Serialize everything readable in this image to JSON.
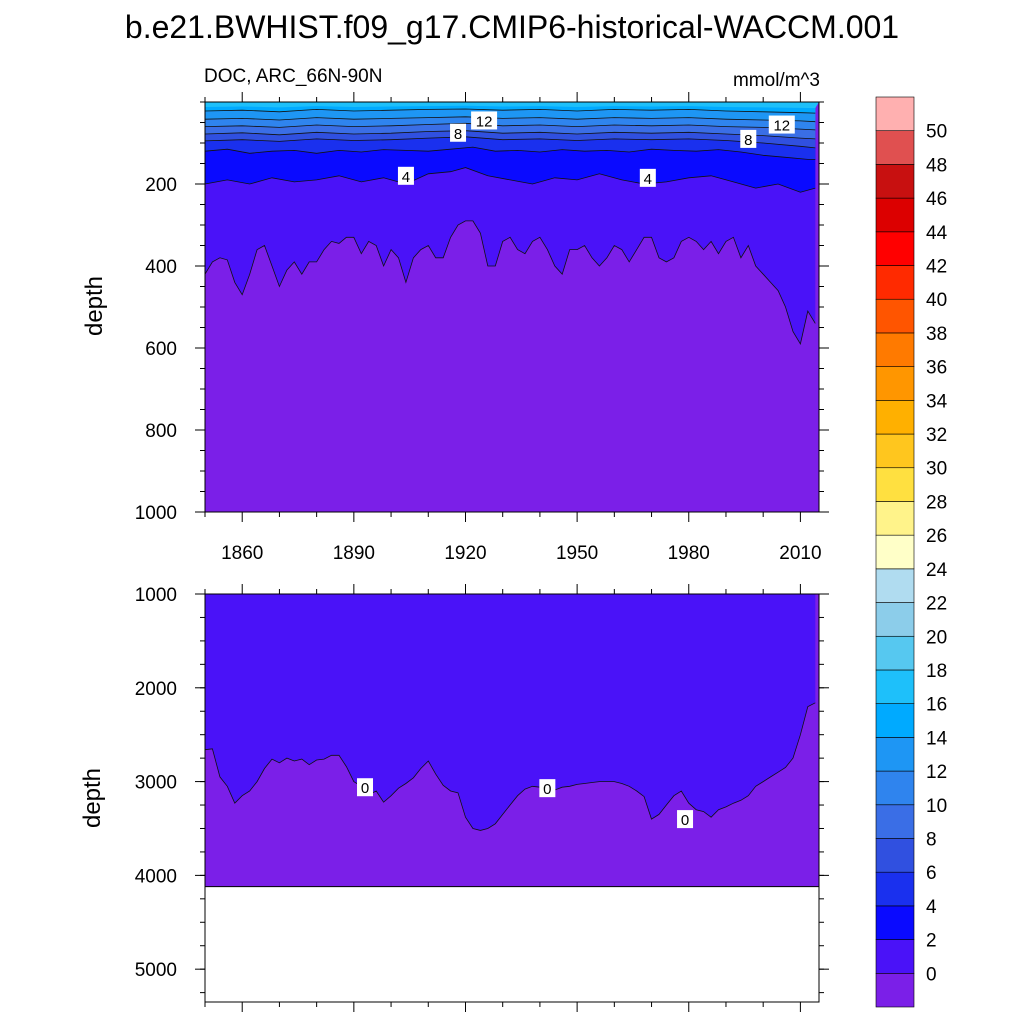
{
  "title": "b.e21.BWHIST.f09_g17.CMIP6-historical-WACCM.001",
  "chart_data": [
    {
      "type": "filled-contour",
      "panel": "upper",
      "subtitle_left": "DOC, ARC_66N-90N",
      "subtitle_right": "mmol/m^3",
      "xlabel": "",
      "ylabel": "depth",
      "xlim": [
        1850,
        2015
      ],
      "ylim": [
        1000,
        0
      ],
      "x_ticks": [
        "1860",
        "1890",
        "1920",
        "1950",
        "1980",
        "2010"
      ],
      "y_ticks": [
        "200",
        "400",
        "600",
        "800",
        "1000"
      ],
      "x_tick_values": [
        1860,
        1890,
        1920,
        1950,
        1980,
        2010
      ],
      "y_tick_values": [
        200,
        400,
        600,
        800,
        1000
      ],
      "contour_labels": [
        {
          "text": "12",
          "x": 1925,
          "y": 45
        },
        {
          "text": "12",
          "x": 2005,
          "y": 55
        },
        {
          "text": "8",
          "x": 1918,
          "y": 75
        },
        {
          "text": "8",
          "x": 1996,
          "y": 90
        },
        {
          "text": "4",
          "x": 1904,
          "y": 180
        },
        {
          "text": "4",
          "x": 1969,
          "y": 185
        }
      ],
      "contour_boundaries": [
        {
          "level": 0,
          "x": [
            1850,
            1852,
            1854,
            1856,
            1858,
            1860,
            1862,
            1864,
            1866,
            1868,
            1870,
            1872,
            1874,
            1876,
            1878,
            1880,
            1882,
            1884,
            1886,
            1888,
            1890,
            1892,
            1894,
            1896,
            1898,
            1900,
            1902,
            1904,
            1906,
            1908,
            1910,
            1912,
            1914,
            1916,
            1918,
            1920,
            1922,
            1924,
            1926,
            1928,
            1930,
            1932,
            1934,
            1936,
            1938,
            1940,
            1942,
            1944,
            1946,
            1948,
            1950,
            1952,
            1954,
            1956,
            1958,
            1960,
            1962,
            1964,
            1966,
            1968,
            1970,
            1972,
            1974,
            1976,
            1978,
            1980,
            1982,
            1984,
            1986,
            1988,
            1990,
            1992,
            1994,
            1996,
            1998,
            2000,
            2002,
            2004,
            2006,
            2008,
            2010,
            2012,
            2014
          ],
          "y": [
            420,
            390,
            380,
            385,
            440,
            470,
            420,
            360,
            350,
            400,
            450,
            410,
            390,
            420,
            390,
            390,
            360,
            340,
            345,
            330,
            330,
            370,
            340,
            350,
            400,
            360,
            380,
            440,
            380,
            360,
            350,
            380,
            380,
            330,
            300,
            290,
            290,
            320,
            400,
            400,
            340,
            330,
            360,
            370,
            340,
            330,
            360,
            400,
            420,
            360,
            360,
            350,
            380,
            400,
            380,
            350,
            360,
            390,
            360,
            330,
            330,
            380,
            390,
            380,
            340,
            330,
            340,
            360,
            340,
            370,
            340,
            330,
            380,
            350,
            400,
            420,
            440,
            460,
            500,
            560,
            590,
            510,
            540
          ]
        },
        {
          "level": 2,
          "x": [
            1850,
            1856,
            1862,
            1868,
            1874,
            1880,
            1886,
            1892,
            1898,
            1904,
            1910,
            1916,
            1920,
            1926,
            1932,
            1938,
            1944,
            1950,
            1956,
            1962,
            1968,
            1974,
            1980,
            1986,
            1992,
            1998,
            2004,
            2010,
            2014
          ],
          "y": [
            200,
            190,
            200,
            185,
            195,
            190,
            180,
            195,
            185,
            200,
            175,
            170,
            160,
            180,
            190,
            200,
            185,
            190,
            175,
            190,
            200,
            195,
            185,
            180,
            195,
            210,
            200,
            220,
            210
          ]
        },
        {
          "level": 4,
          "x": [
            1850,
            1856,
            1862,
            1868,
            1874,
            1880,
            1886,
            1892,
            1898,
            1904,
            1910,
            1916,
            1922,
            1928,
            1934,
            1940,
            1946,
            1952,
            1958,
            1964,
            1970,
            1976,
            1982,
            1988,
            1994,
            2000,
            2006,
            2012,
            2014
          ],
          "y": [
            120,
            115,
            125,
            120,
            118,
            125,
            118,
            122,
            116,
            118,
            120,
            115,
            110,
            120,
            118,
            122,
            116,
            120,
            118,
            122,
            115,
            118,
            120,
            116,
            122,
            130,
            135,
            140,
            140
          ]
        },
        {
          "level": 6,
          "x": [
            1850,
            1860,
            1870,
            1880,
            1890,
            1900,
            1910,
            1920,
            1930,
            1940,
            1950,
            1960,
            1970,
            1980,
            1990,
            2000,
            2010,
            2014
          ],
          "y": [
            95,
            92,
            96,
            90,
            94,
            92,
            88,
            85,
            92,
            90,
            94,
            90,
            92,
            90,
            94,
            100,
            108,
            112
          ]
        },
        {
          "level": 8,
          "x": [
            1850,
            1860,
            1870,
            1880,
            1890,
            1900,
            1910,
            1920,
            1930,
            1940,
            1950,
            1960,
            1970,
            1980,
            1990,
            2000,
            2010,
            2014
          ],
          "y": [
            78,
            75,
            80,
            74,
            78,
            76,
            72,
            70,
            76,
            74,
            78,
            74,
            76,
            74,
            78,
            82,
            88,
            90
          ]
        },
        {
          "level": 10,
          "x": [
            1850,
            1860,
            1870,
            1880,
            1890,
            1900,
            1910,
            1920,
            1930,
            1940,
            1950,
            1960,
            1970,
            1980,
            1990,
            2000,
            2010,
            2014
          ],
          "y": [
            60,
            58,
            62,
            56,
            60,
            58,
            55,
            52,
            58,
            56,
            60,
            56,
            58,
            56,
            60,
            62,
            66,
            68
          ]
        },
        {
          "level": 12,
          "x": [
            1850,
            1860,
            1870,
            1880,
            1890,
            1900,
            1910,
            1920,
            1930,
            1940,
            1950,
            1960,
            1970,
            1980,
            1990,
            2000,
            2010,
            2014
          ],
          "y": [
            42,
            40,
            44,
            38,
            42,
            40,
            38,
            36,
            40,
            38,
            42,
            38,
            40,
            38,
            42,
            44,
            46,
            48
          ]
        },
        {
          "level": 14,
          "x": [
            1850,
            1860,
            1870,
            1880,
            1890,
            1900,
            1910,
            1920,
            1930,
            1940,
            1950,
            1960,
            1970,
            1980,
            1990,
            2000,
            2010,
            2014
          ],
          "y": [
            22,
            20,
            24,
            18,
            22,
            20,
            18,
            17,
            20,
            18,
            22,
            18,
            20,
            18,
            22,
            24,
            26,
            27
          ]
        }
      ]
    },
    {
      "type": "filled-contour",
      "panel": "lower",
      "xlabel": "",
      "ylabel": "depth",
      "xlim": [
        1850,
        2015
      ],
      "ylim": [
        5350,
        1000
      ],
      "y_ticks": [
        "1000",
        "2000",
        "3000",
        "4000",
        "5000"
      ],
      "y_tick_values": [
        1000,
        2000,
        3000,
        4000,
        5000
      ],
      "x_tick_values": [
        1860,
        1890,
        1920,
        1950,
        1980,
        2010
      ],
      "ocean_bottom_depth": 4120,
      "contour_labels": [
        {
          "text": "0",
          "x": 1893,
          "y": 3060
        },
        {
          "text": "0",
          "x": 1942,
          "y": 3070
        },
        {
          "text": "0",
          "x": 1979,
          "y": 3400
        }
      ],
      "contour_boundaries": [
        {
          "level": 0,
          "x": [
            1850,
            1852,
            1854,
            1856,
            1858,
            1860,
            1862,
            1864,
            1866,
            1868,
            1870,
            1872,
            1874,
            1876,
            1878,
            1880,
            1882,
            1884,
            1886,
            1888,
            1890,
            1892,
            1894,
            1896,
            1898,
            1900,
            1902,
            1904,
            1906,
            1908,
            1910,
            1912,
            1914,
            1916,
            1918,
            1920,
            1922,
            1924,
            1926,
            1928,
            1930,
            1932,
            1934,
            1936,
            1938,
            1940,
            1942,
            1944,
            1946,
            1948,
            1950,
            1952,
            1954,
            1956,
            1958,
            1960,
            1962,
            1964,
            1966,
            1968,
            1970,
            1972,
            1974,
            1976,
            1978,
            1980,
            1982,
            1984,
            1986,
            1988,
            1990,
            1992,
            1994,
            1996,
            1998,
            2000,
            2002,
            2004,
            2006,
            2008,
            2010,
            2012,
            2014
          ],
          "y": [
            2660,
            2650,
            2950,
            3050,
            3230,
            3150,
            3100,
            3000,
            2860,
            2760,
            2800,
            2750,
            2780,
            2760,
            2820,
            2770,
            2760,
            2720,
            2720,
            2840,
            3000,
            3050,
            3140,
            3100,
            3220,
            3150,
            3070,
            3020,
            2960,
            2860,
            2780,
            2920,
            3040,
            3100,
            3120,
            3380,
            3500,
            3520,
            3500,
            3450,
            3350,
            3250,
            3150,
            3080,
            3050,
            3060,
            3080,
            3090,
            3060,
            3050,
            3030,
            3020,
            3010,
            3000,
            3000,
            3000,
            3020,
            3050,
            3100,
            3160,
            3400,
            3350,
            3250,
            3150,
            3100,
            3230,
            3300,
            3320,
            3380,
            3300,
            3270,
            3230,
            3200,
            3150,
            3050,
            3000,
            2950,
            2900,
            2850,
            2750,
            2500,
            2200,
            2160
          ]
        }
      ]
    },
    {
      "type": "colorbar",
      "levels": [
        "0",
        "2",
        "4",
        "6",
        "8",
        "10",
        "12",
        "14",
        "16",
        "18",
        "20",
        "22",
        "24",
        "26",
        "28",
        "30",
        "32",
        "34",
        "36",
        "38",
        "40",
        "42",
        "44",
        "46",
        "48",
        "50"
      ],
      "colors": [
        "#7b1fe8",
        "#4a12f8",
        "#0a0aff",
        "#1a30ee",
        "#3050e0",
        "#3a6ee6",
        "#2f84ee",
        "#1e96f4",
        "#00aaff",
        "#1ec0fa",
        "#56c8f0",
        "#8ccdea",
        "#b0dcf0",
        "#ffffc8",
        "#fff38a",
        "#ffe040",
        "#ffc61e",
        "#ffb000",
        "#ff9600",
        "#ff7a00",
        "#ff5500",
        "#ff2a00",
        "#ff0000",
        "#dc0000",
        "#c81010",
        "#e05050",
        "#ffb0b0"
      ]
    }
  ]
}
